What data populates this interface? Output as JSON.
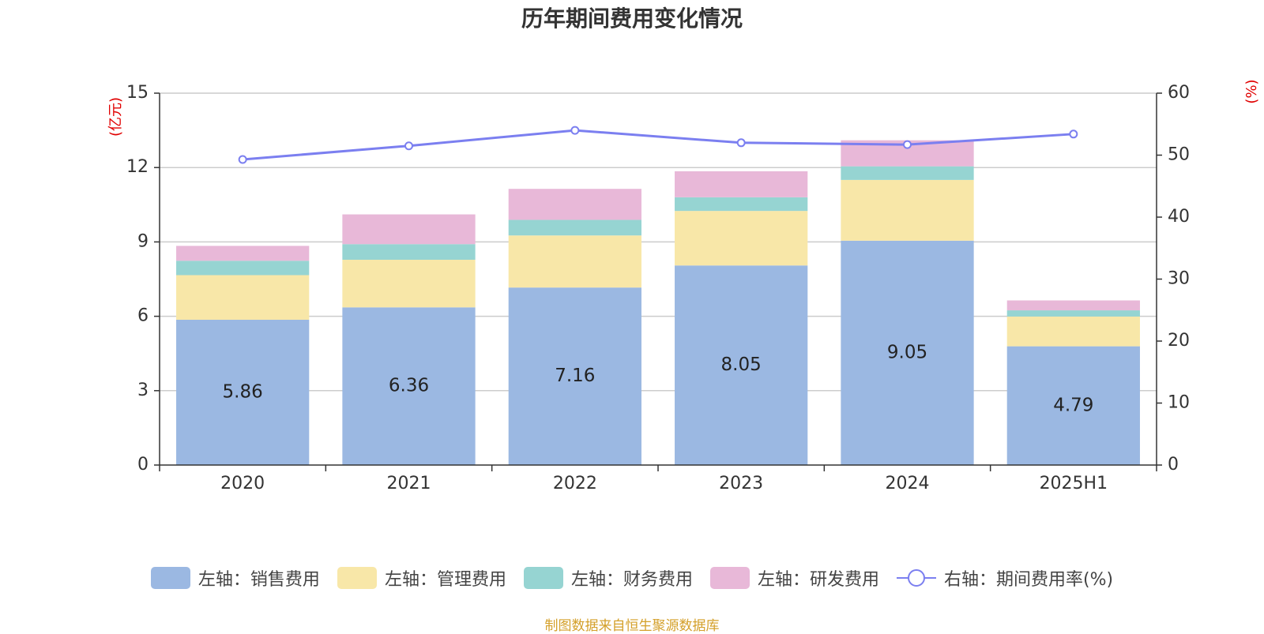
{
  "chart_data": {
    "type": "bar",
    "title": "历年期间费用变化情况",
    "categories": [
      "2020",
      "2021",
      "2022",
      "2023",
      "2024",
      "2025H1"
    ],
    "y_left": {
      "label": "(亿元)",
      "ticks": [
        "0",
        "3",
        "6",
        "9",
        "12",
        "15"
      ],
      "range": [
        0,
        15
      ]
    },
    "y_right": {
      "label": "(%)",
      "ticks": [
        "0",
        "10",
        "20",
        "30",
        "40",
        "50",
        "60"
      ],
      "range": [
        0,
        60
      ]
    },
    "series": [
      {
        "name": "左轴：销售费用",
        "axis": "left",
        "stack": true,
        "color": "#9bb8e2",
        "values": [
          5.86,
          6.36,
          7.16,
          8.05,
          9.05,
          4.79
        ],
        "labels": [
          "5.86",
          "6.36",
          "7.16",
          "8.05",
          "9.05",
          "4.79"
        ]
      },
      {
        "name": "左轴：管理费用",
        "axis": "left",
        "stack": true,
        "color": "#f8e7a8",
        "values": [
          1.8,
          1.92,
          2.1,
          2.2,
          2.45,
          1.2
        ]
      },
      {
        "name": "左轴：财务费用",
        "axis": "left",
        "stack": true,
        "color": "#96d4d2",
        "values": [
          0.58,
          0.63,
          0.63,
          0.55,
          0.55,
          0.25
        ]
      },
      {
        "name": "左轴：研发费用",
        "axis": "left",
        "stack": true,
        "color": "#e8b8d8",
        "values": [
          0.6,
          1.2,
          1.25,
          1.05,
          1.05,
          0.4
        ]
      },
      {
        "name": "右轴：期间费用率(%)",
        "axis": "right",
        "type": "line",
        "color": "#7b7ff0",
        "values": [
          49.3,
          51.5,
          54.0,
          52.0,
          51.7,
          53.4
        ]
      }
    ],
    "grid": true,
    "legend_position": "bottom"
  },
  "source_note": "制图数据来自恒生聚源数据库"
}
